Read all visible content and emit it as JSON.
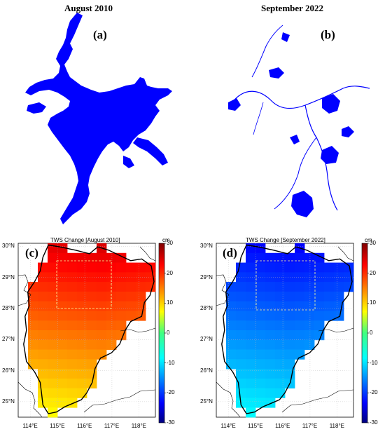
{
  "panels": {
    "a": {
      "header": "August 2010",
      "letter": "(a)"
    },
    "b": {
      "header": "September 2022",
      "letter": "(b)"
    },
    "c": {
      "letter": "(c)",
      "map_title": "TWS Change [August 2010]",
      "colorbar_unit": "cm"
    },
    "d": {
      "letter": "(d)",
      "map_title": "TWS Change [September 2022]",
      "colorbar_unit": "cm"
    }
  },
  "colors": {
    "water": "#0000ff",
    "boundary": "#000000",
    "study_box": "#ffff99"
  },
  "colorbar": {
    "range": [
      -30,
      30
    ],
    "ticks": [
      {
        "value": 30,
        "label": "30"
      },
      {
        "value": 20,
        "label": "20"
      },
      {
        "value": 10,
        "label": "10"
      },
      {
        "value": 0,
        "label": "0"
      },
      {
        "value": -10,
        "label": "-10"
      },
      {
        "value": -20,
        "label": "-20"
      },
      {
        "value": -30,
        "label": "-30"
      }
    ],
    "colormap": "jet"
  },
  "lat_ticks": [
    {
      "value": 30,
      "label": "30°N"
    },
    {
      "value": 29,
      "label": "29°N"
    },
    {
      "value": 28,
      "label": "28°N"
    },
    {
      "value": 27,
      "label": "27°N"
    },
    {
      "value": 26,
      "label": "26°N"
    },
    {
      "value": 25,
      "label": "25°N"
    }
  ],
  "lon_ticks": [
    {
      "value": 114,
      "label": "114°E"
    },
    {
      "value": 115,
      "label": "115°E"
    },
    {
      "value": 116,
      "label": "116°E"
    },
    {
      "value": 117,
      "label": "117°E"
    },
    {
      "value": 118,
      "label": "118°E"
    }
  ],
  "extent": {
    "lon": [
      113.55,
      118.6
    ],
    "lat": [
      24.5,
      30.1
    ]
  },
  "tws_2010_range_cm": [
    8,
    25
  ],
  "tws_2022_range_cm": [
    -23,
    -8
  ]
}
